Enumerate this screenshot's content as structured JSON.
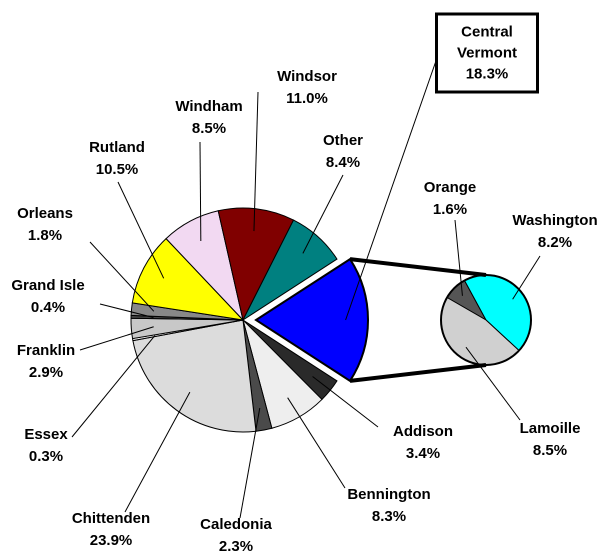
{
  "chart_data": {
    "type": "pie",
    "categories": [
      "Central Vermont",
      "Addison",
      "Bennington",
      "Caledonia",
      "Chittenden",
      "Essex",
      "Franklin",
      "Grand Isle",
      "Orleans",
      "Rutland",
      "Windham",
      "Windsor",
      "Other"
    ],
    "values": [
      18.3,
      3.4,
      8.3,
      2.3,
      23.9,
      0.3,
      2.9,
      0.4,
      1.8,
      10.5,
      8.5,
      11.0,
      8.4
    ],
    "value_labels": [
      "18.3%",
      "3.4%",
      "8.3%",
      "2.3%",
      "23.9%",
      "0.3%",
      "2.9%",
      "0.4%",
      "1.8%",
      "10.5%",
      "8.5%",
      "11.0%",
      "8.4%"
    ],
    "colors": [
      "#0000ff",
      "#2a2a2a",
      "#eeeeee",
      "#4a4a4a",
      "#dcdcdc",
      "#ffffff",
      "#c8c8c8",
      "#444444",
      "#888888",
      "#ffff00",
      "#f2d9f2",
      "#800000",
      "#008080"
    ],
    "secondary": {
      "categories": [
        "Orange",
        "Washington",
        "Lamoille"
      ],
      "values": [
        1.6,
        8.2,
        8.5
      ],
      "value_labels": [
        "1.6%",
        "8.2%",
        "8.5%"
      ],
      "colors": [
        "#555555",
        "#00ffff",
        "#d0d0d0"
      ]
    }
  }
}
